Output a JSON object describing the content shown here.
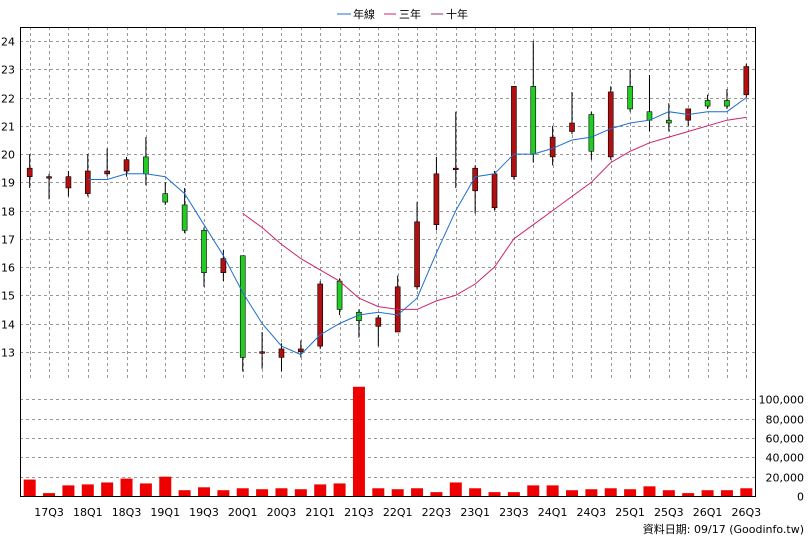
{
  "chart_data": {
    "type": "candlestick",
    "legend": [
      {
        "name": "年線",
        "color": "#1f6fd0"
      },
      {
        "name": "三年",
        "color": "#d0206f"
      },
      {
        "name": "十年",
        "color": "#a0306f"
      }
    ],
    "x_tick_labels": [
      "17Q3",
      "18Q1",
      "18Q3",
      "19Q1",
      "19Q3",
      "20Q1",
      "20Q3",
      "21Q1",
      "21Q3",
      "22Q1",
      "22Q3",
      "23Q1",
      "23Q3",
      "24Q1",
      "24Q3",
      "25Q1",
      "25Q3",
      "26Q1",
      "26Q3"
    ],
    "price_axis": {
      "min": 12,
      "max": 24.5,
      "ticks": [
        13,
        14,
        15,
        16,
        17,
        18,
        19,
        20,
        21,
        22,
        23,
        24
      ]
    },
    "volume_axis": {
      "min": 0,
      "max": 120000,
      "ticks": [
        0,
        20000,
        40000,
        60000,
        80000,
        100000
      ],
      "tick_labels": [
        "0",
        "20,000",
        "40,000",
        "60,000",
        "80,000",
        "100,000"
      ]
    },
    "candles": [
      {
        "o": 19.2,
        "h": 20.0,
        "l": 18.8,
        "c": 19.5,
        "vol": 17000
      },
      {
        "o": 19.2,
        "h": 19.3,
        "l": 18.4,
        "c": 19.2,
        "vol": 3000
      },
      {
        "o": 18.8,
        "h": 19.4,
        "l": 18.5,
        "c": 19.2,
        "vol": 11000
      },
      {
        "o": 18.6,
        "h": 20.0,
        "l": 18.5,
        "c": 19.4,
        "vol": 12000
      },
      {
        "o": 19.3,
        "h": 20.2,
        "l": 19.2,
        "c": 19.4,
        "vol": 14000
      },
      {
        "o": 19.4,
        "h": 19.9,
        "l": 19.2,
        "c": 19.8,
        "vol": 18000
      },
      {
        "o": 19.9,
        "h": 20.6,
        "l": 18.9,
        "c": 19.3,
        "vol": 13000
      },
      {
        "o": 18.6,
        "h": 19.0,
        "l": 18.2,
        "c": 18.3,
        "vol": 20000
      },
      {
        "o": 18.2,
        "h": 18.8,
        "l": 17.2,
        "c": 17.3,
        "vol": 6000
      },
      {
        "o": 17.3,
        "h": 17.4,
        "l": 15.3,
        "c": 15.8,
        "vol": 9000
      },
      {
        "o": 15.8,
        "h": 16.6,
        "l": 15.5,
        "c": 16.3,
        "vol": 6000
      },
      {
        "o": 16.4,
        "h": 16.4,
        "l": 12.3,
        "c": 12.8,
        "vol": 8000
      },
      {
        "o": 13.0,
        "h": 13.7,
        "l": 12.4,
        "c": 13.0,
        "vol": 7000
      },
      {
        "o": 12.8,
        "h": 13.3,
        "l": 12.3,
        "c": 13.1,
        "vol": 8000
      },
      {
        "o": 13.0,
        "h": 13.4,
        "l": 12.8,
        "c": 13.1,
        "vol": 7000
      },
      {
        "o": 13.2,
        "h": 15.5,
        "l": 13.1,
        "c": 15.4,
        "vol": 12000
      },
      {
        "o": 15.5,
        "h": 15.6,
        "l": 14.3,
        "c": 14.5,
        "vol": 13000
      },
      {
        "o": 14.4,
        "h": 14.5,
        "l": 13.5,
        "c": 14.1,
        "vol": 113000
      },
      {
        "o": 13.9,
        "h": 14.3,
        "l": 13.2,
        "c": 14.2,
        "vol": 8000
      },
      {
        "o": 13.7,
        "h": 15.7,
        "l": 13.7,
        "c": 15.3,
        "vol": 7000
      },
      {
        "o": 15.3,
        "h": 18.3,
        "l": 15.2,
        "c": 17.6,
        "vol": 8000
      },
      {
        "o": 17.5,
        "h": 19.9,
        "l": 17.3,
        "c": 19.3,
        "vol": 4000
      },
      {
        "o": 19.5,
        "h": 21.5,
        "l": 18.8,
        "c": 19.5,
        "vol": 14000
      },
      {
        "o": 18.7,
        "h": 19.6,
        "l": 17.9,
        "c": 19.5,
        "vol": 8000
      },
      {
        "o": 18.1,
        "h": 19.4,
        "l": 18.0,
        "c": 19.3,
        "vol": 4000
      },
      {
        "o": 19.2,
        "h": 22.4,
        "l": 19.1,
        "c": 22.4,
        "vol": 4000
      },
      {
        "o": 22.4,
        "h": 24.0,
        "l": 19.7,
        "c": 20.0,
        "vol": 11000
      },
      {
        "o": 19.9,
        "h": 21.0,
        "l": 19.6,
        "c": 20.6,
        "vol": 11000
      },
      {
        "o": 20.8,
        "h": 22.2,
        "l": 20.7,
        "c": 21.1,
        "vol": 6000
      },
      {
        "o": 21.4,
        "h": 21.5,
        "l": 19.8,
        "c": 20.1,
        "vol": 7000
      },
      {
        "o": 19.9,
        "h": 22.4,
        "l": 19.8,
        "c": 22.2,
        "vol": 8000
      },
      {
        "o": 22.4,
        "h": 23.0,
        "l": 21.5,
        "c": 21.6,
        "vol": 7000
      },
      {
        "o": 21.5,
        "h": 22.8,
        "l": 20.8,
        "c": 21.2,
        "vol": 10000
      },
      {
        "o": 21.2,
        "h": 21.8,
        "l": 20.8,
        "c": 21.1,
        "vol": 6000
      },
      {
        "o": 21.2,
        "h": 21.6,
        "l": 21.0,
        "c": 21.6,
        "vol": 3000
      },
      {
        "o": 21.9,
        "h": 22.1,
        "l": 21.6,
        "c": 21.7,
        "vol": 6000
      },
      {
        "o": 21.9,
        "h": 22.3,
        "l": 21.6,
        "c": 21.7,
        "vol": 6000
      },
      {
        "o": 22.1,
        "h": 23.2,
        "l": 22.0,
        "c": 23.1,
        "vol": 8000
      }
    ],
    "ma_year": [
      null,
      null,
      null,
      19.1,
      19.1,
      19.3,
      19.3,
      19.2,
      18.6,
      17.5,
      16.4,
      15.1,
      14.0,
      13.2,
      12.9,
      13.6,
      14.0,
      14.3,
      14.4,
      14.3,
      14.9,
      16.5,
      18.0,
      19.2,
      19.3,
      20.0,
      20.0,
      20.2,
      20.5,
      20.6,
      20.9,
      21.1,
      21.2,
      21.5,
      21.4,
      21.5,
      21.5,
      22.0
    ],
    "ma_3year": [
      null,
      null,
      null,
      null,
      null,
      null,
      null,
      null,
      null,
      null,
      null,
      17.9,
      17.4,
      16.8,
      16.3,
      15.9,
      15.5,
      14.9,
      14.6,
      14.5,
      14.5,
      14.8,
      15.0,
      15.4,
      16.0,
      17.0,
      17.5,
      18.0,
      18.5,
      19.0,
      19.7,
      20.1,
      20.4,
      20.6,
      20.8,
      21.0,
      21.2,
      21.3
    ],
    "footer_note": "資料日期: 09/17 (Goodinfo.tw)"
  }
}
